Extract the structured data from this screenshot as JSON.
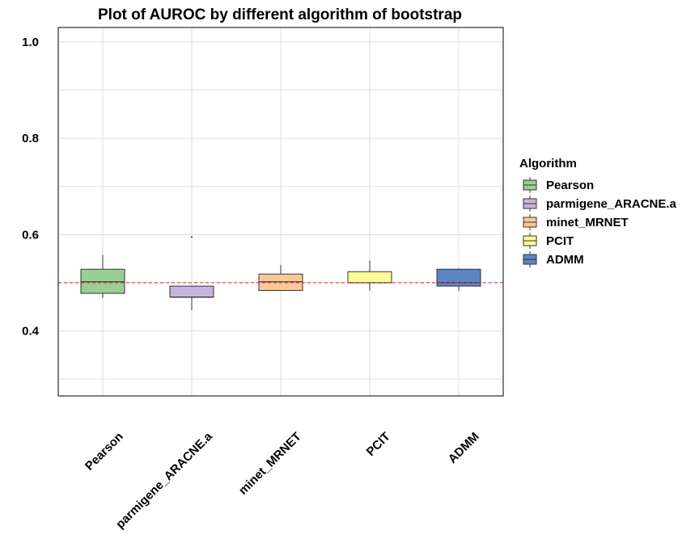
{
  "chart_data": {
    "type": "box",
    "title": "Plot of AUROC by different algorithm of bootstrap",
    "xlabel": "",
    "ylabel": "",
    "ylim": [
      0.265,
      1.03
    ],
    "yticks": [
      0.4,
      0.6,
      0.8,
      1.0
    ],
    "ytick_labels": [
      "0.4",
      "0.6",
      "0.8",
      "1.0"
    ],
    "grid": true,
    "reference_line": {
      "y": 0.5,
      "color": "#dd2222",
      "style": "dashed"
    },
    "categories": [
      "Pearson",
      "parmigene_ARACNE.a",
      "minet_MRNET",
      "PCIT",
      "ADMM"
    ],
    "series": [
      {
        "name": "Pearson",
        "color": "#99cf93",
        "whisker_low": 0.468,
        "q1": 0.478,
        "median": 0.502,
        "q3": 0.528,
        "whisker_high": 0.558,
        "outliers": []
      },
      {
        "name": "parmigene_ARACNE.a",
        "color": "#c6b5da",
        "whisker_low": 0.443,
        "q1": 0.47,
        "median": 0.47,
        "q3": 0.493,
        "whisker_high": 0.493,
        "outliers": [
          0.595
        ]
      },
      {
        "name": "minet_MRNET",
        "color": "#fbc996",
        "whisker_low": 0.483,
        "q1": 0.484,
        "median": 0.502,
        "q3": 0.518,
        "whisker_high": 0.537,
        "outliers": []
      },
      {
        "name": "PCIT",
        "color": "#fdfc9d",
        "whisker_low": 0.484,
        "q1": 0.5,
        "median": 0.5,
        "q3": 0.523,
        "whisker_high": 0.546,
        "outliers": []
      },
      {
        "name": "ADMM",
        "color": "#5b86c0",
        "whisker_low": 0.483,
        "q1": 0.493,
        "median": 0.5,
        "q3": 0.528,
        "whisker_high": 0.53,
        "outliers": []
      }
    ],
    "legend": {
      "title": "Algorithm",
      "position": "right",
      "items": [
        "Pearson",
        "parmigene_ARACNE.a",
        "minet_MRNET",
        "PCIT",
        "ADMM"
      ]
    }
  }
}
